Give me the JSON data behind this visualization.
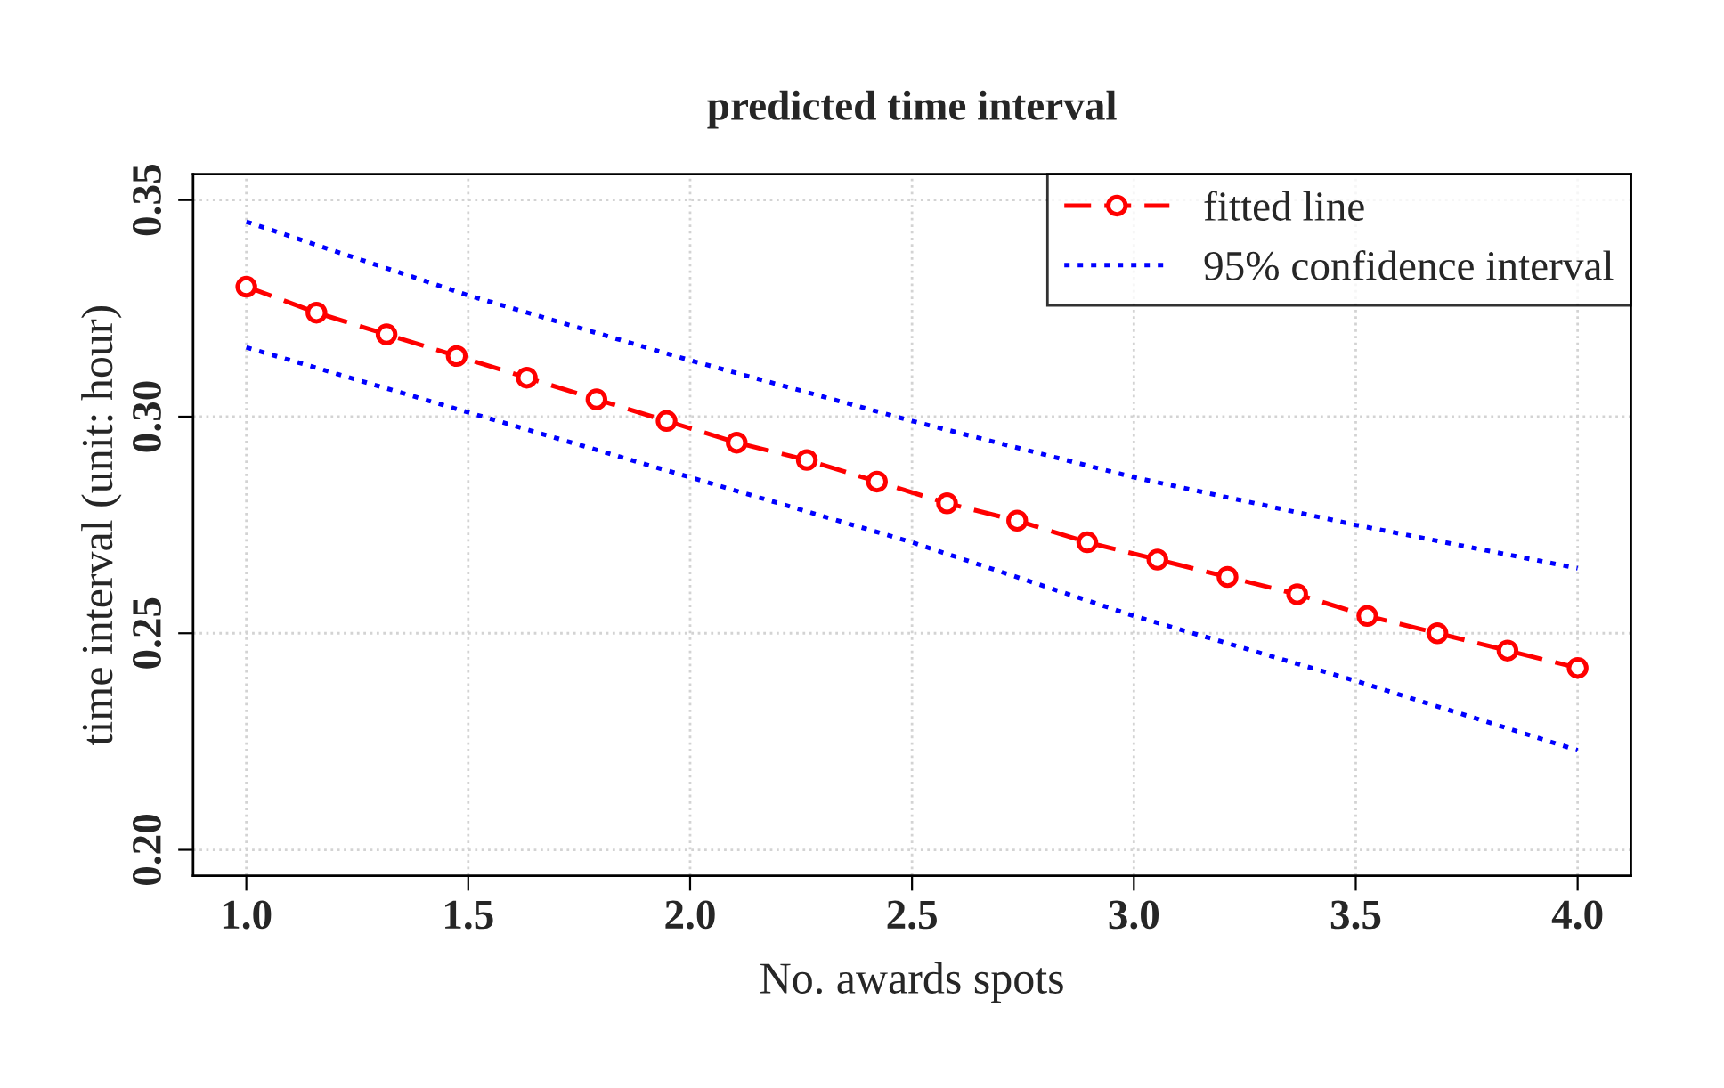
{
  "chart_data": {
    "type": "line",
    "title": "predicted time interval",
    "xlabel": "No. awards spots",
    "ylabel": "time interval (unit: hour)",
    "xlim": [
      0.88,
      4.12
    ],
    "ylim": [
      0.194,
      0.356
    ],
    "xticks": [
      {
        "value": 1,
        "label": "1.0"
      },
      1.5,
      {
        "value": 2,
        "label": "2.0"
      },
      2.5,
      {
        "value": 3,
        "label": "3.0"
      },
      3.5,
      {
        "value": 4,
        "label": "4.0"
      }
    ],
    "yticks": [
      {
        "value": 0.2,
        "label": "0.20"
      },
      0.25,
      {
        "value": 0.3,
        "label": "0.30"
      },
      0.35
    ],
    "grid": true,
    "legend": "top right",
    "series": [
      {
        "name": "fitted line",
        "color": "#ff0000",
        "marker": "circle",
        "line_style": "dashed",
        "x": [
          1.0,
          1.158,
          1.316,
          1.474,
          1.632,
          1.789,
          1.947,
          2.105,
          2.263,
          2.421,
          2.579,
          2.737,
          2.895,
          3.053,
          3.211,
          3.368,
          3.526,
          3.684,
          3.842,
          4.0
        ],
        "values": [
          0.33,
          0.324,
          0.319,
          0.314,
          0.309,
          0.304,
          0.299,
          0.294,
          0.29,
          0.285,
          0.28,
          0.276,
          0.271,
          0.267,
          0.263,
          0.259,
          0.254,
          0.25,
          0.246,
          0.242
        ]
      },
      {
        "name": "95% confidence interval",
        "color": "#0000ff",
        "marker": "none",
        "line_style": "dotted",
        "x": [
          1.0,
          1.5,
          2.0,
          2.5,
          3.0,
          3.5,
          4.0
        ],
        "values": [
          0.345,
          0.328,
          0.313,
          0.299,
          0.286,
          0.275,
          0.265
        ]
      },
      {
        "color": "#0000ff",
        "marker": "none",
        "line_style": "dotted",
        "x": [
          1.0,
          1.5,
          2.0,
          2.5,
          3.0,
          3.5,
          4.0
        ],
        "values": [
          0.316,
          0.301,
          0.286,
          0.271,
          0.254,
          0.239,
          0.223
        ]
      }
    ]
  }
}
